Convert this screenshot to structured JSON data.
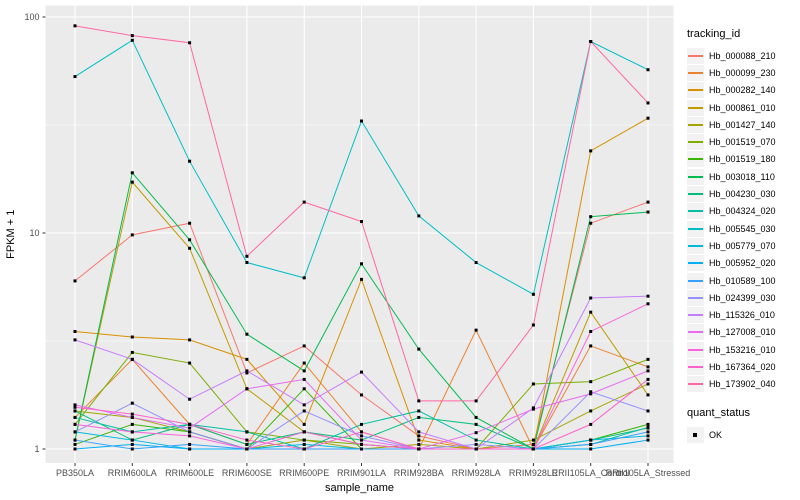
{
  "chart_data": {
    "type": "line",
    "title": "",
    "xlabel": "sample_name",
    "ylabel": "FPKM + 1",
    "x_scale": "discrete",
    "y_scale": "log10",
    "y_ticks": [
      "1",
      "10",
      "100"
    ],
    "y_range": [
      1,
      100
    ],
    "grid": true,
    "panel_bg": "#EBEBEB",
    "grid_color": "#FFFFFF",
    "legend_position": "right",
    "legend_title": "tracking_id",
    "quant_legend_title": "quant_status",
    "quant_legend_items": [
      "OK"
    ],
    "marker": {
      "shape": "square",
      "color": "#000000"
    },
    "categories": [
      "PB350LA",
      "RRIM600LA",
      "RRIM600LE",
      "RRIM600SE",
      "RRIM600PE",
      "RRIM901LA",
      "RRIM928BA",
      "RRIM928LA",
      "RRIM928LE",
      "RRII105LA_Control",
      "RRII105LA_Stressed"
    ],
    "series": [
      {
        "name": "Hb_000088_210",
        "color": "#F8766D",
        "values": [
          6.0,
          9.8,
          11.1,
          2.25,
          3.0,
          1.78,
          1.15,
          1.0,
          1.05,
          11.1,
          13.9
        ]
      },
      {
        "name": "Hb_000099_230",
        "color": "#EA8331",
        "values": [
          1.4,
          2.6,
          1.3,
          1.05,
          2.5,
          1.2,
          1.0,
          3.55,
          1.0,
          3.0,
          2.4
        ]
      },
      {
        "name": "Hb_000282_140",
        "color": "#D89000",
        "values": [
          3.5,
          3.3,
          3.2,
          2.6,
          1.3,
          6.1,
          1.1,
          1.0,
          1.0,
          24,
          34
        ]
      },
      {
        "name": "Hb_000861_010",
        "color": "#C09B00",
        "values": [
          1.1,
          17.2,
          8.5,
          1.9,
          1.2,
          1.05,
          1.0,
          1.0,
          1.0,
          4.3,
          1.78
        ]
      },
      {
        "name": "Hb_001427_140",
        "color": "#A3A500",
        "values": [
          1.5,
          1.4,
          1.2,
          1.0,
          1.1,
          1.0,
          1.05,
          1.0,
          1.1,
          1.5,
          2.0
        ]
      },
      {
        "name": "Hb_001519_070",
        "color": "#7CAE00",
        "values": [
          1.3,
          2.8,
          2.5,
          1.2,
          1.1,
          1.05,
          1.0,
          1.0,
          2.0,
          2.05,
          2.6
        ]
      },
      {
        "name": "Hb_001519_180",
        "color": "#39B600",
        "values": [
          1.05,
          1.3,
          1.2,
          1.0,
          1.9,
          1.0,
          1.0,
          1.0,
          1.0,
          1.1,
          1.3
        ]
      },
      {
        "name": "Hb_003018_110",
        "color": "#00BB4E",
        "values": [
          1.1,
          19.0,
          9.3,
          3.4,
          2.3,
          7.2,
          2.9,
          1.4,
          1.0,
          11.9,
          12.5
        ]
      },
      {
        "name": "Hb_004230_030",
        "color": "#00BF7D",
        "values": [
          1.5,
          1.1,
          1.3,
          1.05,
          1.2,
          1.1,
          1.4,
          1.3,
          1.0,
          1.1,
          1.25
        ]
      },
      {
        "name": "Hb_004324_020",
        "color": "#00C1A3",
        "values": [
          1.4,
          1.2,
          1.3,
          1.2,
          1.0,
          1.3,
          1.5,
          1.1,
          1.0,
          1.05,
          1.26
        ]
      },
      {
        "name": "Hb_005545_030",
        "color": "#00BFC4",
        "values": [
          53,
          78,
          21.5,
          7.3,
          6.2,
          33,
          12,
          7.3,
          5.2,
          77,
          57
        ]
      },
      {
        "name": "Hb_005779_070",
        "color": "#00BAE0",
        "values": [
          1.2,
          1.1,
          1.0,
          1.0,
          1.05,
          1.0,
          1.0,
          1.0,
          1.0,
          1.1,
          1.15
        ]
      },
      {
        "name": "Hb_005952_020",
        "color": "#00B0F6",
        "values": [
          1.0,
          1.05,
          1.0,
          1.0,
          1.0,
          1.0,
          1.0,
          1.0,
          1.0,
          1.0,
          1.1
        ]
      },
      {
        "name": "Hb_010589_100",
        "color": "#35A2FF",
        "values": [
          1.1,
          1.0,
          1.05,
          1.0,
          1.0,
          1.0,
          1.0,
          1.0,
          1.0,
          1.05,
          1.2
        ]
      },
      {
        "name": "Hb_024399_030",
        "color": "#9590FF",
        "values": [
          1.2,
          1.63,
          1.2,
          1.0,
          1.5,
          1.15,
          1.0,
          1.05,
          1.0,
          1.84,
          1.5
        ]
      },
      {
        "name": "Hb_115326_010",
        "color": "#C77CFF",
        "values": [
          3.2,
          2.6,
          1.7,
          2.3,
          1.6,
          2.27,
          1.2,
          1.0,
          1.55,
          5.0,
          5.1
        ]
      },
      {
        "name": "Hb_127008_010",
        "color": "#E76BF3",
        "values": [
          1.6,
          1.4,
          1.25,
          1.9,
          2.1,
          1.1,
          1.0,
          1.19,
          1.53,
          1.8,
          2.3
        ]
      },
      {
        "name": "Hb_153216_010",
        "color": "#FA62DB",
        "values": [
          1.3,
          1.2,
          1.15,
          1.0,
          1.2,
          1.05,
          1.0,
          1.0,
          1.0,
          3.5,
          4.7
        ]
      },
      {
        "name": "Hb_167364_020",
        "color": "#FF61CC",
        "values": [
          1.56,
          1.45,
          1.3,
          1.1,
          1.0,
          1.2,
          1.0,
          1.0,
          1.0,
          1.3,
          2.1
        ]
      },
      {
        "name": "Hb_173902_040",
        "color": "#FF67A4",
        "values": [
          91,
          82,
          76,
          7.8,
          13.9,
          11.3,
          1.67,
          1.67,
          3.75,
          77,
          40
        ]
      }
    ]
  }
}
